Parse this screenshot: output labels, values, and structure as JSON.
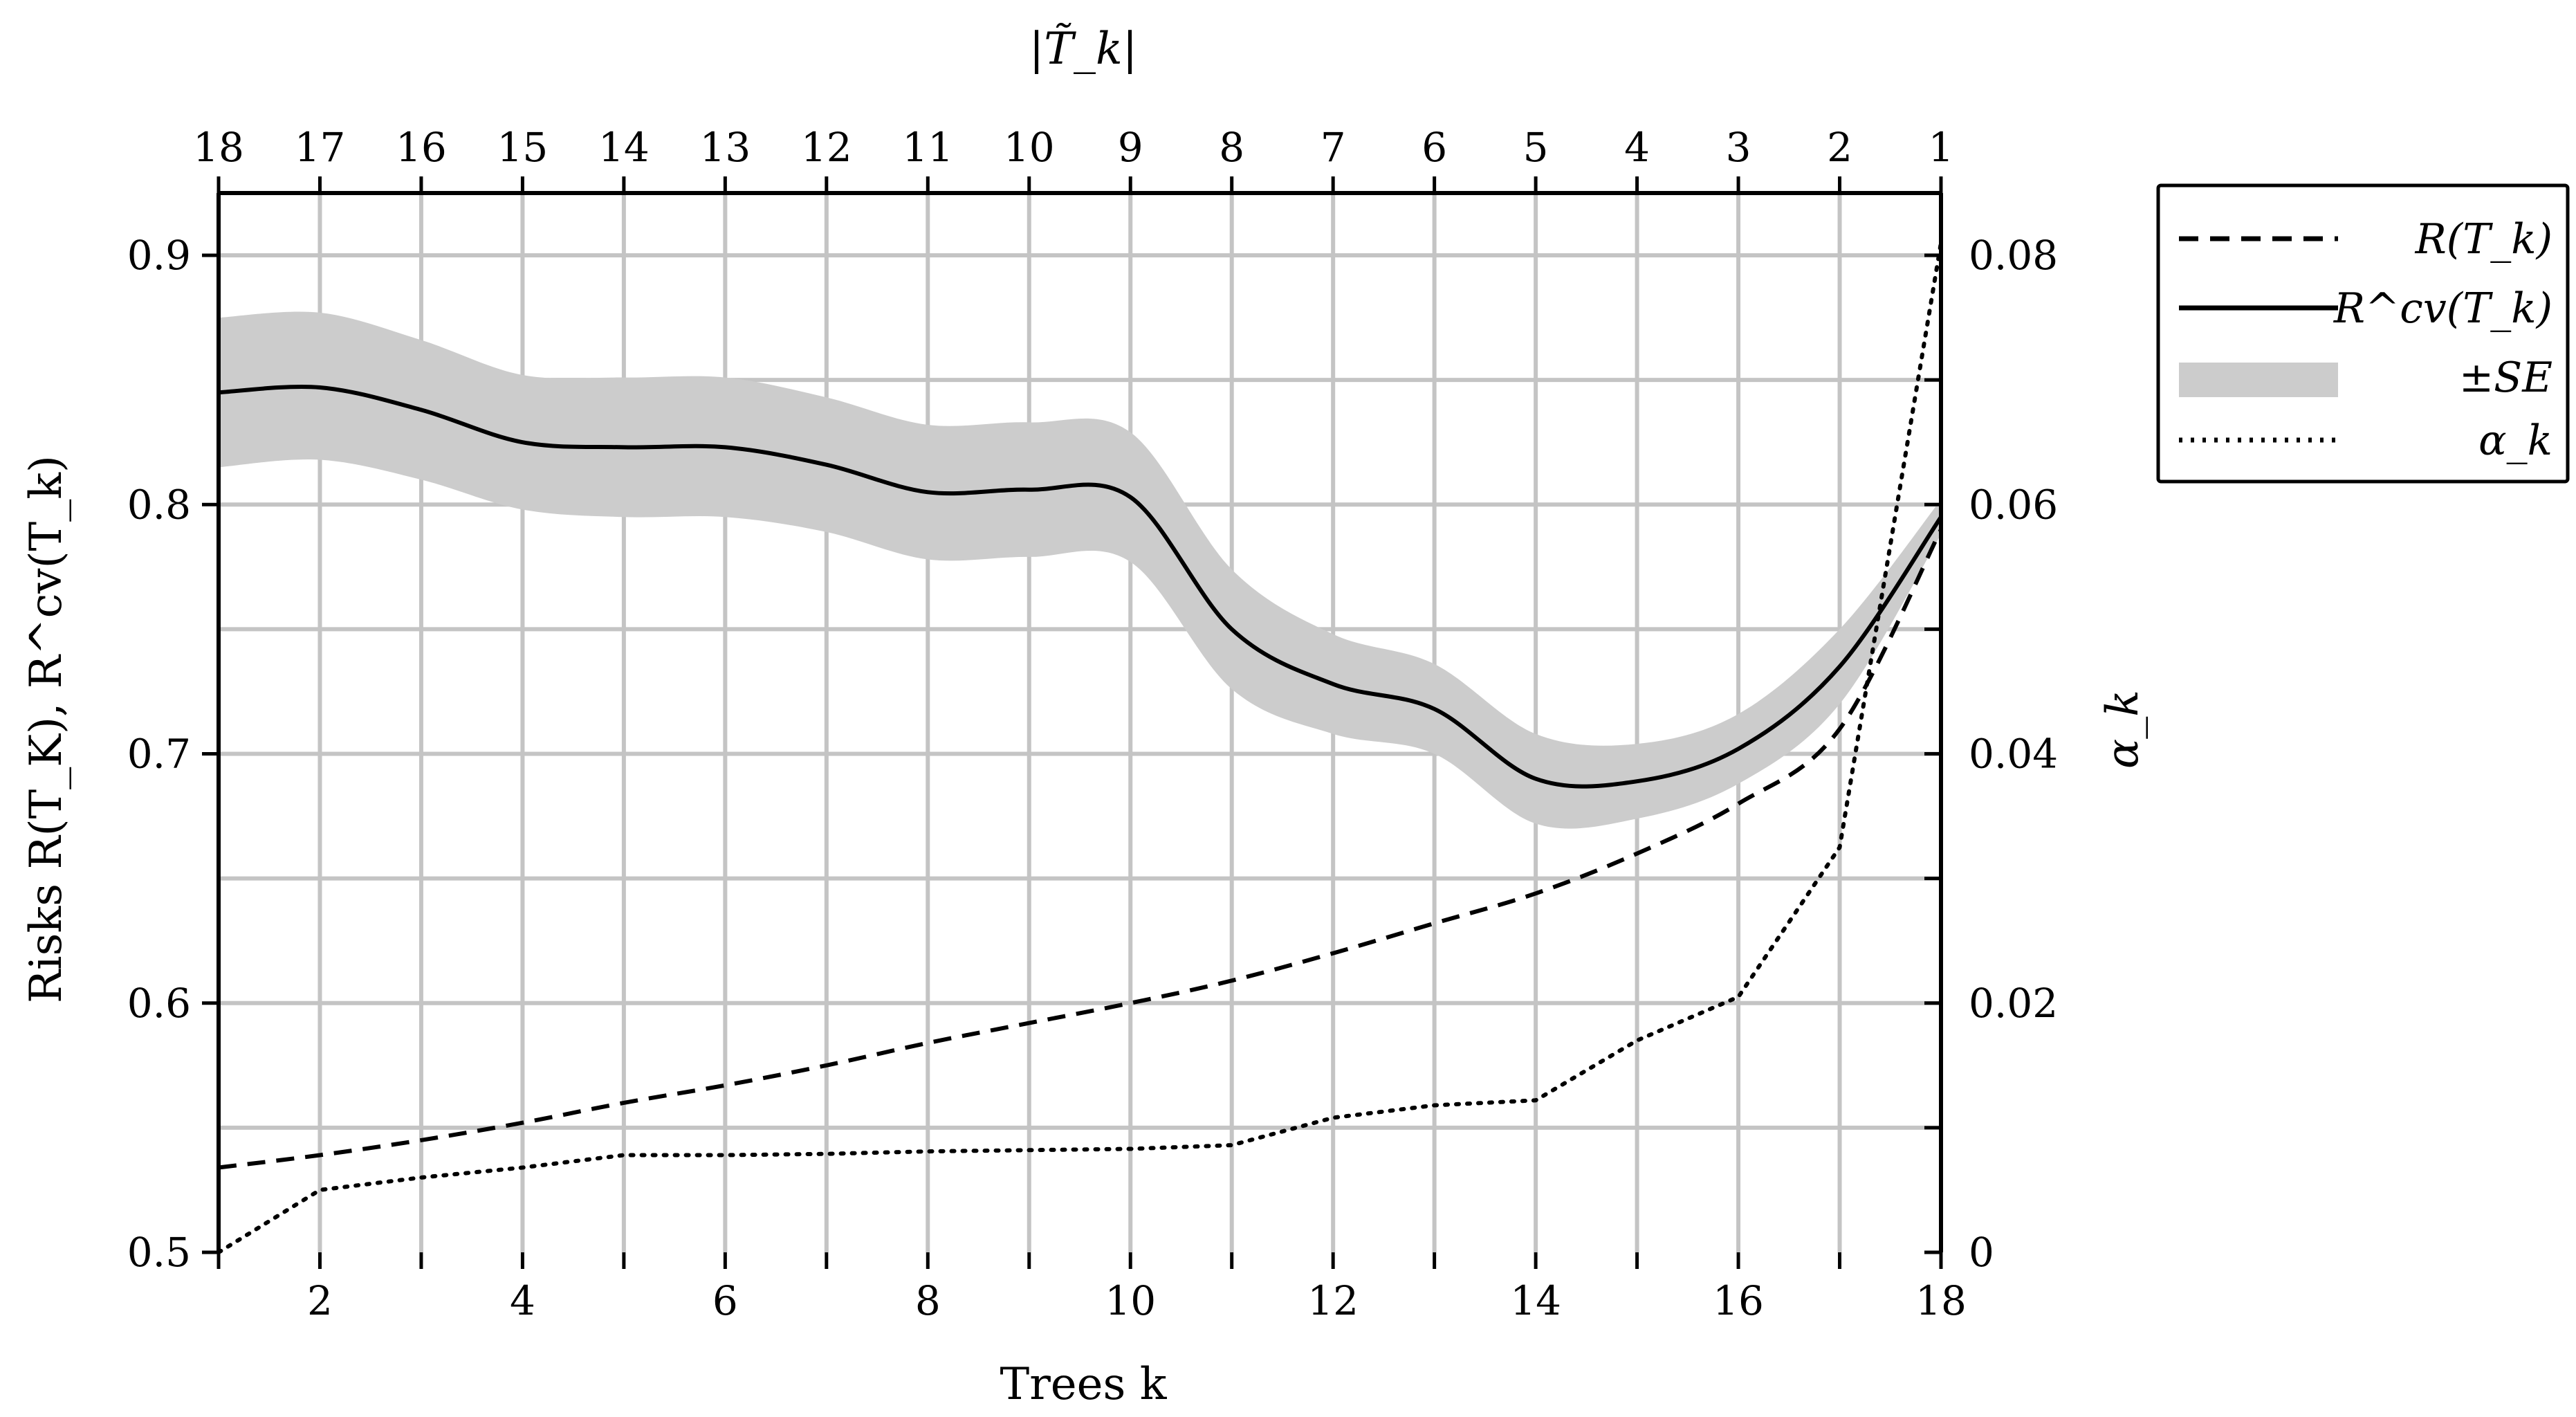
{
  "chart_data": {
    "type": "line",
    "title": "",
    "xlabel": "Trees k",
    "ylabel": "Risks R(T_K), R^cv(T_k)",
    "y2label": "α_k",
    "top_xlabel": "|T̃_k|",
    "xlim": [
      1,
      18
    ],
    "ylim": [
      0.5,
      0.925
    ],
    "y2lim": [
      0,
      0.085
    ],
    "grid": true,
    "legend_position": "outside-right",
    "x": [
      1,
      2,
      3,
      4,
      5,
      6,
      7,
      8,
      9,
      10,
      11,
      12,
      13,
      14,
      15,
      16,
      17,
      18
    ],
    "x_ticks": [
      2,
      4,
      6,
      8,
      10,
      12,
      14,
      16,
      18
    ],
    "x_tick_labels": [
      "2",
      "4",
      "6",
      "8",
      "10",
      "12",
      "14",
      "16",
      "18"
    ],
    "y_ticks": [
      0.5,
      0.6,
      0.7,
      0.8,
      0.9
    ],
    "y_tick_labels": [
      "0.5",
      "0.6",
      "0.7",
      "0.8",
      "0.9"
    ],
    "y2_ticks": [
      0,
      0.02,
      0.04,
      0.06,
      0.08
    ],
    "y2_tick_labels": [
      "0",
      "0.02",
      "0.04",
      "0.06",
      "0.08"
    ],
    "top_tick_labels": [
      "18",
      "17",
      "16",
      "15",
      "14",
      "13",
      "12",
      "11",
      "10",
      "9",
      "8",
      "7",
      "6",
      "5",
      "4",
      "3",
      "2",
      "1"
    ],
    "series": [
      {
        "name": "R(T_k)",
        "style": "dashed",
        "axis": "left",
        "values": [
          0.534,
          0.539,
          0.545,
          0.552,
          0.56,
          0.567,
          0.575,
          0.584,
          0.592,
          0.6,
          0.609,
          0.62,
          0.632,
          0.644,
          0.66,
          0.68,
          0.71,
          0.79
        ]
      },
      {
        "name": "R^cv(T_k)",
        "style": "solid",
        "axis": "left",
        "values": [
          0.845,
          0.847,
          0.838,
          0.825,
          0.823,
          0.823,
          0.816,
          0.805,
          0.806,
          0.803,
          0.75,
          0.728,
          0.718,
          0.69,
          0.689,
          0.702,
          0.735,
          0.795
        ]
      },
      {
        "name": "±SE",
        "style": "band",
        "axis": "left",
        "lower": [
          0.815,
          0.818,
          0.81,
          0.798,
          0.795,
          0.795,
          0.789,
          0.778,
          0.779,
          0.777,
          0.726,
          0.708,
          0.7,
          0.672,
          0.674,
          0.688,
          0.72,
          0.788
        ],
        "upper": [
          0.875,
          0.877,
          0.866,
          0.852,
          0.851,
          0.851,
          0.843,
          0.832,
          0.833,
          0.829,
          0.774,
          0.748,
          0.736,
          0.708,
          0.704,
          0.716,
          0.75,
          0.802
        ]
      },
      {
        "name": "α_k",
        "style": "dotted",
        "axis": "right",
        "values": [
          0,
          0.005,
          0.006,
          0.0068,
          0.0078,
          0.0078,
          0.0079,
          0.0081,
          0.0082,
          0.0083,
          0.0086,
          0.0108,
          0.0118,
          0.0122,
          0.017,
          0.0205,
          0.0325,
          0.081
        ]
      }
    ],
    "legend": [
      {
        "label": "R(T_k)",
        "style": "dashed"
      },
      {
        "label": "R^cv(T_k)",
        "style": "solid"
      },
      {
        "label": "±SE",
        "style": "band"
      },
      {
        "label": "α_k",
        "style": "dotted"
      }
    ],
    "colors": {
      "line": "#000000",
      "band": "#cccccc",
      "grid": "#c4c4c4"
    }
  }
}
